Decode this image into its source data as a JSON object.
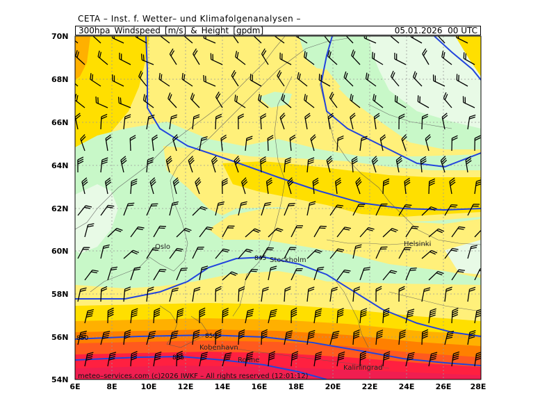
{
  "header": {
    "source": "CETA – Inst. f. Wetter– und Klimafolgenanalysen –",
    "product": "300hpa_Windspeed_[m/s]_&_Height_[gpdm]",
    "valid_time": "05.01.2026  00 UTC"
  },
  "axes": {
    "latitudes": [
      "70N",
      "68N",
      "66N",
      "64N",
      "62N",
      "60N",
      "58N",
      "56N",
      "54N"
    ],
    "longitudes": [
      "6E",
      "8E",
      "10E",
      "12E",
      "14E",
      "16E",
      "18E",
      "20E",
      "22E",
      "24E",
      "26E",
      "28E"
    ]
  },
  "cities": [
    {
      "name": "Oslo"
    },
    {
      "name": "Stockholm"
    },
    {
      "name": "Helsinki"
    },
    {
      "name": "Kobenhavn"
    },
    {
      "name": "Ronne"
    },
    {
      "name": "Kaliningrad"
    }
  ],
  "contour_labels": [
    "845",
    "850",
    "850",
    "855"
  ],
  "footer": {
    "credit": "meteo–services.com (c)2026 IWKF – All rights reserved (12:01:12)"
  },
  "colors": {
    "light_green": "#e8fae6",
    "green": "#c8f8c8",
    "pale_yellow": "#fff07a",
    "yellow": "#ffdf00",
    "orange": "#ffb000",
    "dark_orange": "#ff8000",
    "red_orange": "#ff5a1e",
    "red": "#ff2040",
    "crimson": "#f01e50",
    "contour": "#2244dd"
  }
}
